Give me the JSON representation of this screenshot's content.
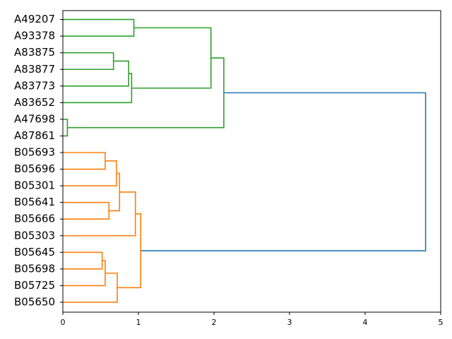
{
  "chart_data": {
    "type": "dendrogram",
    "orientation": "horizontal",
    "xlim": [
      0,
      5
    ],
    "x_ticks": [
      0,
      1,
      2,
      3,
      4,
      5
    ],
    "x_tick_labels": [
      "0",
      "1",
      "2",
      "3",
      "4",
      "5"
    ],
    "leaves": [
      "A49207",
      "A93378",
      "A83875",
      "A83877",
      "A83773",
      "A83652",
      "A47698",
      "A87861",
      "B05693",
      "B05696",
      "B05301",
      "B05641",
      "B05666",
      "B05303",
      "B05645",
      "B05698",
      "B05725",
      "B05650"
    ],
    "colors": {
      "green": "#2ca02c",
      "orange": "#ff7f0e",
      "blue": "#1f77b4"
    },
    "merges": [
      {
        "id": "m1",
        "left": "A49207",
        "right": "A93378",
        "height": 0.94,
        "color": "green"
      },
      {
        "id": "m2",
        "left": "A83875",
        "right": "A83877",
        "height": 0.67,
        "color": "green"
      },
      {
        "id": "m3",
        "left": "m2",
        "right": "A83773",
        "height": 0.87,
        "color": "green"
      },
      {
        "id": "m4",
        "left": "m3",
        "right": "A83652",
        "height": 0.91,
        "color": "green"
      },
      {
        "id": "m5",
        "left": "m1",
        "right": "m4",
        "height": 1.96,
        "color": "green"
      },
      {
        "id": "m6",
        "left": "A47698",
        "right": "A87861",
        "height": 0.06,
        "color": "green"
      },
      {
        "id": "m7",
        "left": "m5",
        "right": "m6",
        "height": 2.13,
        "color": "green"
      },
      {
        "id": "m8",
        "left": "B05693",
        "right": "B05696",
        "height": 0.56,
        "color": "orange"
      },
      {
        "id": "m9",
        "left": "m8",
        "right": "B05301",
        "height": 0.71,
        "color": "orange"
      },
      {
        "id": "m10",
        "left": "B05641",
        "right": "B05666",
        "height": 0.61,
        "color": "orange"
      },
      {
        "id": "m11",
        "left": "m9",
        "right": "m10",
        "height": 0.75,
        "color": "orange"
      },
      {
        "id": "m12",
        "left": "m11",
        "right": "B05303",
        "height": 0.96,
        "color": "orange"
      },
      {
        "id": "m13",
        "left": "B05645",
        "right": "B05698",
        "height": 0.52,
        "color": "orange"
      },
      {
        "id": "m14",
        "left": "m13",
        "right": "B05725",
        "height": 0.56,
        "color": "orange"
      },
      {
        "id": "m15",
        "left": "m14",
        "right": "B05650",
        "height": 0.72,
        "color": "orange"
      },
      {
        "id": "m16",
        "left": "m12",
        "right": "m15",
        "height": 1.03,
        "color": "orange"
      },
      {
        "id": "m17",
        "left": "m7",
        "right": "m16",
        "height": 4.8,
        "color": "blue"
      }
    ]
  }
}
